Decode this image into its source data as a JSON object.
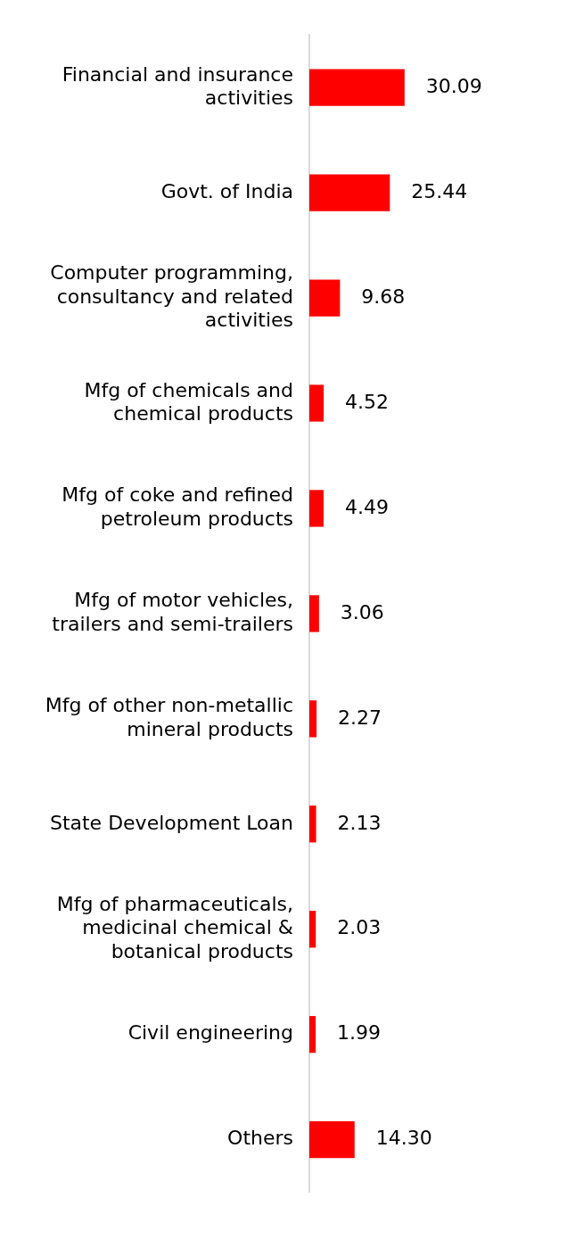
{
  "chart_data": {
    "type": "bar",
    "orientation": "horizontal",
    "categories": [
      "Financial and insurance activities",
      "Govt. of India",
      "Computer programming, consultancy and related activities",
      "Mfg of chemicals and chemical products",
      "Mfg of coke and refined petroleum products",
      "Mfg of motor vehicles, trailers and semi-trailers",
      "Mfg of other non-metallic mineral products",
      "State Development Loan",
      "Mfg of pharmaceuticals, medicinal chemical & botanical products",
      "Civil engineering",
      "Others"
    ],
    "values": [
      30.09,
      25.44,
      9.68,
      4.52,
      4.49,
      3.06,
      2.27,
      2.13,
      2.03,
      1.99,
      14.3
    ],
    "value_labels": [
      "30.09",
      "25.44",
      "9.68",
      "4.52",
      "4.49",
      "3.06",
      "2.27",
      "2.13",
      "2.03",
      "1.99",
      "14.30"
    ],
    "color": "#ff0000",
    "legend": false
  }
}
